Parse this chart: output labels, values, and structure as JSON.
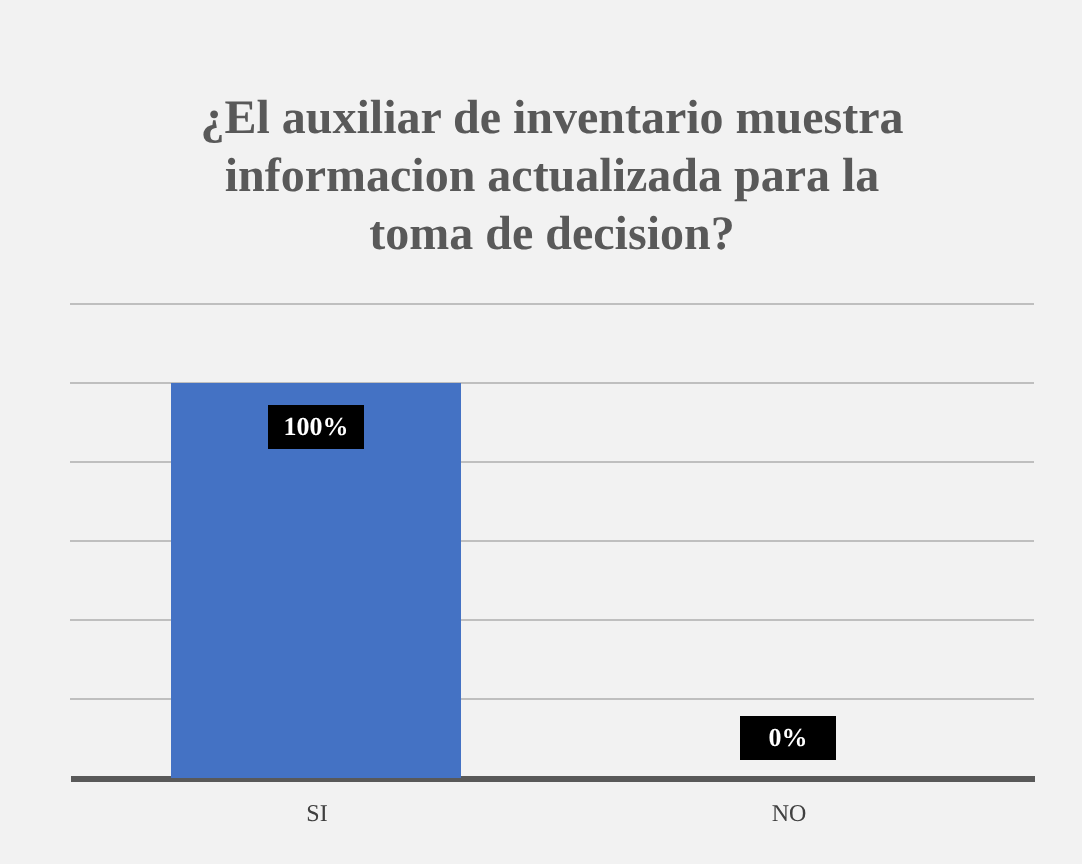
{
  "chart_data": {
    "type": "bar",
    "title": "¿El auxiliar de inventario muestra informacion actualizada para la toma de decision?",
    "categories": [
      "SI",
      "NO"
    ],
    "values": [
      100,
      0
    ],
    "value_labels": [
      "100%",
      "0%"
    ],
    "color": "#4472c4",
    "ylim": [
      0,
      120
    ],
    "yticks": [
      {
        "value": 0,
        "label": null
      },
      {
        "value": 20,
        "label": null
      },
      {
        "value": 40,
        "label": null
      },
      {
        "value": 60,
        "label": null
      },
      {
        "value": 80,
        "label": null
      },
      {
        "value": 100,
        "label": null
      },
      {
        "value": 120,
        "label": null
      }
    ],
    "tick_labels": "x",
    "grid": "y"
  }
}
